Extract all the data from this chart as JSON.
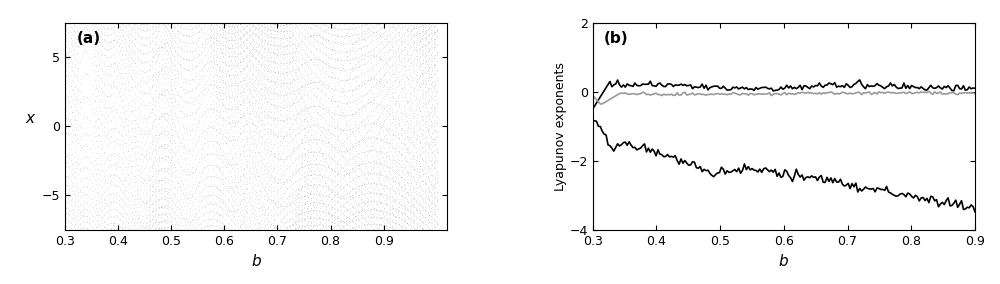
{
  "panel_a": {
    "label": "(a)",
    "xlabel": "b",
    "ylabel": "x",
    "xlim": [
      0.3,
      1.02
    ],
    "ylim": [
      -7.5,
      7.5
    ],
    "xticks": [
      0.3,
      0.4,
      0.5,
      0.6,
      0.7,
      0.8,
      0.9
    ],
    "yticks": [
      -5,
      0,
      5
    ],
    "dot_color": "#404040",
    "dot_size": 0.15,
    "dot_alpha": 0.35
  },
  "panel_b": {
    "label": "(b)",
    "xlabel": "b",
    "ylabel": "Lyapunov exponents",
    "xlim": [
      0.3,
      0.9
    ],
    "ylim": [
      -4,
      2
    ],
    "xticks": [
      0.3,
      0.4,
      0.5,
      0.6,
      0.7,
      0.8,
      0.9
    ],
    "yticks": [
      -4,
      -2,
      0,
      2
    ],
    "line_color_pos": "#000000",
    "line_color_zero": "#999999",
    "line_color_neg": "#000000",
    "linewidth": 1.2
  }
}
